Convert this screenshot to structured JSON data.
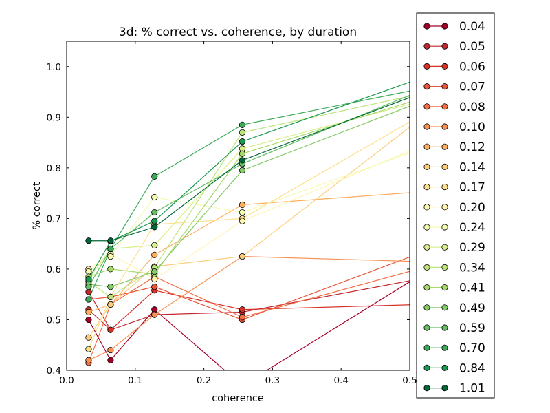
{
  "chart_data": {
    "type": "line",
    "title": "3d: % correct vs. coherence, by duration",
    "xlabel": "coherence",
    "ylabel": "% correct",
    "xlim": [
      0.0,
      0.5
    ],
    "ylim": [
      0.4,
      1.05
    ],
    "xticks": [
      "0.0",
      "0.1",
      "0.2",
      "0.3",
      "0.4",
      "0.5"
    ],
    "yticks": [
      "0.4",
      "0.5",
      "0.6",
      "0.7",
      "0.8",
      "0.9",
      "1.0"
    ],
    "grid": false,
    "legend_position": "outside-right",
    "x": [
      0.032,
      0.064,
      0.128,
      0.256,
      0.512
    ],
    "series": [
      {
        "name": "0.04",
        "color": "#a50026",
        "values": [
          0.5,
          0.42,
          0.52,
          0.37,
          0.585
        ]
      },
      {
        "name": "0.05",
        "color": "#c1272d",
        "values": [
          0.555,
          0.48,
          0.51,
          0.515,
          0.58
        ]
      },
      {
        "name": "0.06",
        "color": "#d73027",
        "values": [
          0.52,
          0.48,
          0.558,
          0.52,
          0.53
        ]
      },
      {
        "name": "0.07",
        "color": "#e8543b",
        "values": [
          0.54,
          0.545,
          0.565,
          0.5,
          0.63
        ]
      },
      {
        "name": "0.08",
        "color": "#f46d43",
        "values": [
          0.415,
          0.53,
          0.585,
          0.505,
          0.6
        ]
      },
      {
        "name": "0.10",
        "color": "#f99153",
        "values": [
          0.42,
          0.44,
          0.51,
          0.625,
          0.615
        ]
      },
      {
        "name": "0.12",
        "color": "#fdae61",
        "values": [
          0.515,
          0.53,
          0.628,
          0.727,
          0.752
        ]
      },
      {
        "name": "0.14",
        "color": "#fecc7b",
        "values": [
          0.465,
          0.53,
          0.605,
          0.625,
          0.893
        ]
      },
      {
        "name": "0.17",
        "color": "#fee08b",
        "values": [
          0.442,
          0.545,
          0.688,
          0.7,
          0.9
        ]
      },
      {
        "name": "0.20",
        "color": "#fff4b0",
        "values": [
          0.6,
          0.63,
          0.58,
          0.695,
          0.84
        ]
      },
      {
        "name": "0.24",
        "color": "#f4fab0",
        "values": [
          0.595,
          0.625,
          0.742,
          0.712,
          0.835
        ]
      },
      {
        "name": "0.29",
        "color": "#d9ef8b",
        "values": [
          0.58,
          0.64,
          0.647,
          0.838,
          0.93
        ]
      },
      {
        "name": "0.34",
        "color": "#bfe47a",
        "values": [
          0.575,
          0.545,
          0.603,
          0.87,
          0.945
        ]
      },
      {
        "name": "0.41",
        "color": "#a6d96a",
        "values": [
          0.585,
          0.6,
          0.59,
          0.828,
          0.935
        ]
      },
      {
        "name": "0.49",
        "color": "#84ca66",
        "values": [
          0.57,
          0.565,
          0.595,
          0.795,
          0.928
        ]
      },
      {
        "name": "0.59",
        "color": "#66bd63",
        "values": [
          0.565,
          0.64,
          0.712,
          0.808,
          0.95
        ]
      },
      {
        "name": "0.70",
        "color": "#3daa5a",
        "values": [
          0.54,
          0.64,
          0.783,
          0.885,
          0.955
        ]
      },
      {
        "name": "0.84",
        "color": "#1a9850",
        "values": [
          0.58,
          0.655,
          0.695,
          0.852,
          0.975
        ]
      },
      {
        "name": "1.01",
        "color": "#006837",
        "values": [
          0.656,
          0.656,
          0.683,
          0.815,
          0.945
        ]
      }
    ]
  }
}
